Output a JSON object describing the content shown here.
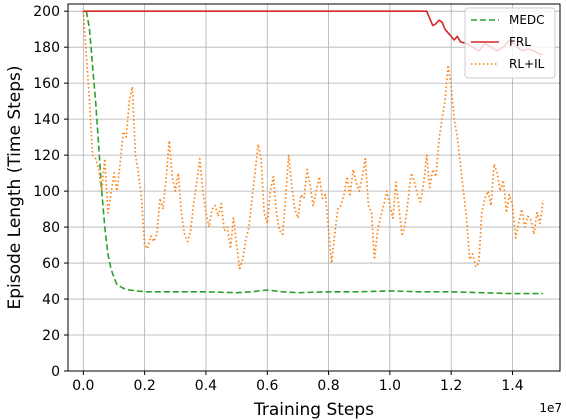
{
  "chart_data": {
    "type": "line",
    "xlabel": "Training Steps",
    "ylabel": "Episode Length (Time Steps)",
    "x_offset_label": "1e7",
    "xlim": [
      -0.05,
      1.555
    ],
    "ylim": [
      0,
      204
    ],
    "grid": true,
    "legend_position": "top-right",
    "x_ticks": [
      {
        "value": 0.0,
        "label": "0.0"
      },
      {
        "value": 0.2,
        "label": "0.2"
      },
      {
        "value": 0.4,
        "label": "0.4"
      },
      {
        "value": 0.6,
        "label": "0.6"
      },
      {
        "value": 0.8,
        "label": "0.8"
      },
      {
        "value": 1.0,
        "label": "1.0"
      },
      {
        "value": 1.2,
        "label": "1.2"
      },
      {
        "value": 1.4,
        "label": "1.4"
      }
    ],
    "y_ticks": [
      {
        "value": 0,
        "label": "0"
      },
      {
        "value": 20,
        "label": "20"
      },
      {
        "value": 40,
        "label": "40"
      },
      {
        "value": 60,
        "label": "60"
      },
      {
        "value": 80,
        "label": "80"
      },
      {
        "value": 100,
        "label": "100"
      },
      {
        "value": 120,
        "label": "120"
      },
      {
        "value": 140,
        "label": "140"
      },
      {
        "value": 160,
        "label": "160"
      },
      {
        "value": 180,
        "label": "180"
      },
      {
        "value": 200,
        "label": "200"
      }
    ],
    "series": [
      {
        "name": "MEDC",
        "color": "#2ca02c",
        "dash": "dashed",
        "points": [
          [
            0.01,
            200
          ],
          [
            0.02,
            190
          ],
          [
            0.03,
            170
          ],
          [
            0.04,
            150
          ],
          [
            0.05,
            125
          ],
          [
            0.06,
            100
          ],
          [
            0.07,
            80
          ],
          [
            0.08,
            65
          ],
          [
            0.09,
            57
          ],
          [
            0.1,
            52
          ],
          [
            0.11,
            48
          ],
          [
            0.13,
            46
          ],
          [
            0.15,
            45
          ],
          [
            0.2,
            44
          ],
          [
            0.3,
            44
          ],
          [
            0.4,
            44
          ],
          [
            0.5,
            43.5
          ],
          [
            0.55,
            44
          ],
          [
            0.6,
            45
          ],
          [
            0.65,
            44
          ],
          [
            0.7,
            43.5
          ],
          [
            0.8,
            44
          ],
          [
            0.9,
            44
          ],
          [
            1.0,
            44.5
          ],
          [
            1.1,
            44
          ],
          [
            1.2,
            44
          ],
          [
            1.3,
            43.5
          ],
          [
            1.4,
            43
          ],
          [
            1.5,
            43
          ]
        ]
      },
      {
        "name": "FRL",
        "color": "#d62728",
        "dash": "solid",
        "points": [
          [
            0.0,
            200
          ],
          [
            0.3,
            200
          ],
          [
            0.6,
            200
          ],
          [
            0.9,
            200
          ],
          [
            1.12,
            200
          ],
          [
            1.13,
            196
          ],
          [
            1.14,
            192
          ],
          [
            1.15,
            193
          ],
          [
            1.16,
            195
          ],
          [
            1.17,
            194
          ],
          [
            1.18,
            190
          ],
          [
            1.19,
            188
          ],
          [
            1.2,
            186
          ],
          [
            1.21,
            184
          ],
          [
            1.22,
            186
          ],
          [
            1.23,
            183
          ],
          [
            1.25,
            182
          ],
          [
            1.27,
            180
          ],
          [
            1.29,
            178
          ],
          [
            1.31,
            182
          ],
          [
            1.33,
            180
          ],
          [
            1.35,
            178
          ],
          [
            1.37,
            180
          ],
          [
            1.39,
            184
          ],
          [
            1.41,
            181
          ],
          [
            1.43,
            178
          ],
          [
            1.45,
            179
          ],
          [
            1.47,
            178
          ],
          [
            1.49,
            176
          ],
          [
            1.5,
            176
          ]
        ]
      },
      {
        "name": "RL+IL",
        "color": "#ff7f0e",
        "dash": "dotted",
        "points": [
          [
            0.0,
            200
          ],
          [
            0.01,
            175
          ],
          [
            0.02,
            150
          ],
          [
            0.03,
            120
          ],
          [
            0.04,
            118
          ],
          [
            0.05,
            112
          ],
          [
            0.06,
            100
          ],
          [
            0.07,
            118
          ],
          [
            0.08,
            88
          ],
          [
            0.09,
            98
          ],
          [
            0.1,
            110
          ],
          [
            0.11,
            100
          ],
          [
            0.12,
            115
          ],
          [
            0.13,
            133
          ],
          [
            0.14,
            130
          ],
          [
            0.15,
            150
          ],
          [
            0.16,
            158
          ],
          [
            0.17,
            120
          ],
          [
            0.18,
            110
          ],
          [
            0.19,
            95
          ],
          [
            0.2,
            70
          ],
          [
            0.21,
            68
          ],
          [
            0.22,
            75
          ],
          [
            0.23,
            72
          ],
          [
            0.24,
            76
          ],
          [
            0.25,
            96
          ],
          [
            0.26,
            90
          ],
          [
            0.27,
            107
          ],
          [
            0.28,
            128
          ],
          [
            0.29,
            108
          ],
          [
            0.3,
            100
          ],
          [
            0.31,
            110
          ],
          [
            0.32,
            88
          ],
          [
            0.33,
            76
          ],
          [
            0.34,
            72
          ],
          [
            0.35,
            78
          ],
          [
            0.36,
            93
          ],
          [
            0.37,
            105
          ],
          [
            0.38,
            118
          ],
          [
            0.39,
            100
          ],
          [
            0.4,
            88
          ],
          [
            0.41,
            80
          ],
          [
            0.42,
            90
          ],
          [
            0.43,
            92
          ],
          [
            0.44,
            86
          ],
          [
            0.45,
            93
          ],
          [
            0.46,
            78
          ],
          [
            0.47,
            80
          ],
          [
            0.48,
            68
          ],
          [
            0.49,
            85
          ],
          [
            0.5,
            70
          ],
          [
            0.51,
            57
          ],
          [
            0.52,
            62
          ],
          [
            0.53,
            73
          ],
          [
            0.54,
            80
          ],
          [
            0.55,
            95
          ],
          [
            0.56,
            110
          ],
          [
            0.57,
            126
          ],
          [
            0.58,
            118
          ],
          [
            0.59,
            88
          ],
          [
            0.6,
            82
          ],
          [
            0.61,
            100
          ],
          [
            0.62,
            108
          ],
          [
            0.63,
            88
          ],
          [
            0.64,
            78
          ],
          [
            0.65,
            76
          ],
          [
            0.66,
            96
          ],
          [
            0.67,
            120
          ],
          [
            0.68,
            103
          ],
          [
            0.69,
            90
          ],
          [
            0.7,
            85
          ],
          [
            0.71,
            98
          ],
          [
            0.72,
            96
          ],
          [
            0.73,
            112
          ],
          [
            0.74,
            103
          ],
          [
            0.75,
            92
          ],
          [
            0.76,
            100
          ],
          [
            0.77,
            108
          ],
          [
            0.78,
            96
          ],
          [
            0.79,
            98
          ],
          [
            0.8,
            78
          ],
          [
            0.81,
            60
          ],
          [
            0.82,
            76
          ],
          [
            0.83,
            90
          ],
          [
            0.84,
            92
          ],
          [
            0.85,
            98
          ],
          [
            0.86,
            108
          ],
          [
            0.87,
            97
          ],
          [
            0.88,
            112
          ],
          [
            0.89,
            105
          ],
          [
            0.9,
            100
          ],
          [
            0.91,
            108
          ],
          [
            0.92,
            118
          ],
          [
            0.93,
            92
          ],
          [
            0.94,
            88
          ],
          [
            0.95,
            62
          ],
          [
            0.96,
            78
          ],
          [
            0.97,
            86
          ],
          [
            0.98,
            92
          ],
          [
            0.99,
            100
          ],
          [
            1.0,
            92
          ],
          [
            1.01,
            85
          ],
          [
            1.02,
            105
          ],
          [
            1.03,
            90
          ],
          [
            1.04,
            75
          ],
          [
            1.05,
            82
          ],
          [
            1.06,
            96
          ],
          [
            1.07,
            110
          ],
          [
            1.08,
            105
          ],
          [
            1.09,
            98
          ],
          [
            1.1,
            94
          ],
          [
            1.11,
            104
          ],
          [
            1.12,
            120
          ],
          [
            1.13,
            102
          ],
          [
            1.14,
            112
          ],
          [
            1.15,
            108
          ],
          [
            1.16,
            128
          ],
          [
            1.17,
            140
          ],
          [
            1.18,
            150
          ],
          [
            1.19,
            170
          ],
          [
            1.2,
            158
          ],
          [
            1.21,
            140
          ],
          [
            1.22,
            130
          ],
          [
            1.23,
            115
          ],
          [
            1.24,
            100
          ],
          [
            1.25,
            85
          ],
          [
            1.26,
            62
          ],
          [
            1.27,
            65
          ],
          [
            1.28,
            58
          ],
          [
            1.29,
            60
          ],
          [
            1.3,
            88
          ],
          [
            1.31,
            96
          ],
          [
            1.32,
            100
          ],
          [
            1.33,
            92
          ],
          [
            1.34,
            115
          ],
          [
            1.35,
            110
          ],
          [
            1.36,
            100
          ],
          [
            1.37,
            106
          ],
          [
            1.38,
            88
          ],
          [
            1.39,
            98
          ],
          [
            1.4,
            92
          ],
          [
            1.41,
            74
          ],
          [
            1.42,
            82
          ],
          [
            1.43,
            90
          ],
          [
            1.44,
            80
          ],
          [
            1.45,
            86
          ],
          [
            1.46,
            84
          ],
          [
            1.47,
            76
          ],
          [
            1.48,
            88
          ],
          [
            1.49,
            82
          ],
          [
            1.5,
            95
          ]
        ]
      }
    ]
  }
}
